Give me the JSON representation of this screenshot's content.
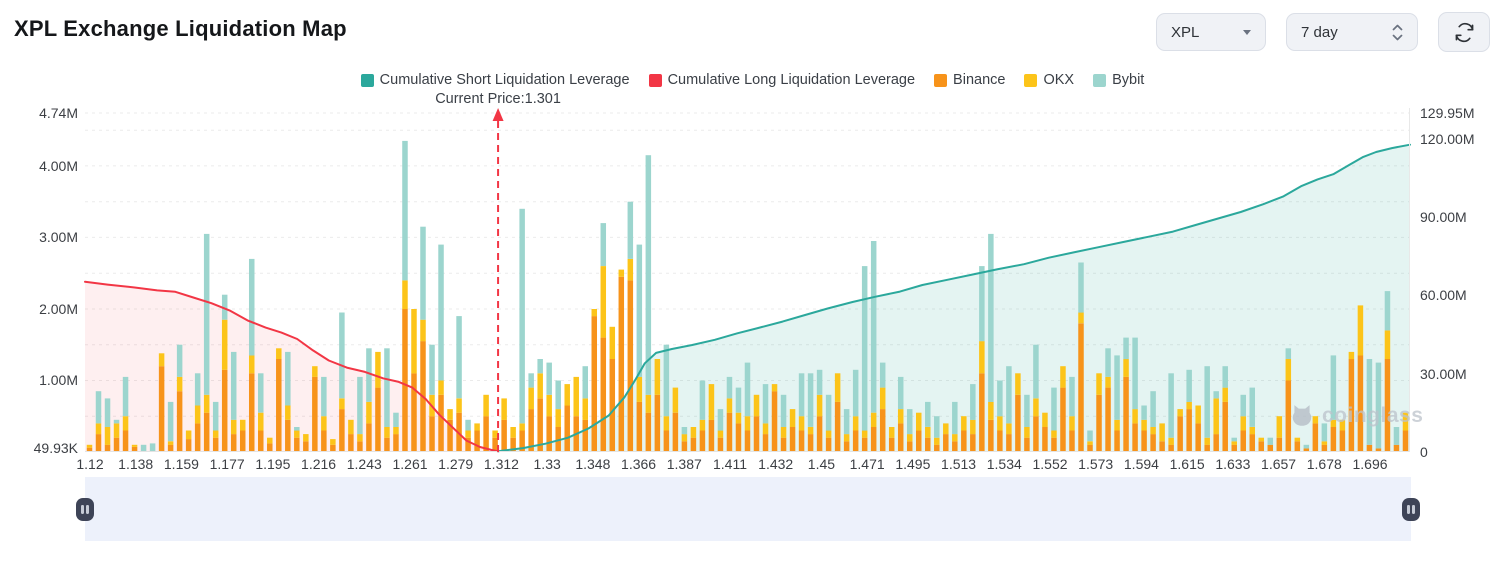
{
  "header": {
    "title": "XPL Exchange Liquidation Map"
  },
  "controls": {
    "symbol_select": {
      "value": "XPL"
    },
    "period_select": {
      "value": "7 day"
    },
    "refresh_button": {
      "icon": "refresh-icon"
    }
  },
  "legend": {
    "items": [
      {
        "id": "short",
        "label": "Cumulative Short Liquidation Leverage",
        "color": "#2BA89C"
      },
      {
        "id": "long",
        "label": "Cumulative Long Liquidation Leverage",
        "color": "#F23645"
      },
      {
        "id": "binance",
        "label": "Binance",
        "color": "#F7931A"
      },
      {
        "id": "okx",
        "label": "OKX",
        "color": "#FCC419"
      },
      {
        "id": "bybit",
        "label": "Bybit",
        "color": "#9CD5CE"
      }
    ]
  },
  "watermark": {
    "text": "coinglass"
  },
  "chart_data": {
    "type": "bar",
    "title": "XPL Exchange Liquidation Map",
    "xlabel": "Price (USDT)",
    "x_price_range": [
      1.118,
      1.705
    ],
    "x_tick_labels": [
      "1.12",
      "1.138",
      "1.159",
      "1.177",
      "1.195",
      "1.216",
      "1.243",
      "1.261",
      "1.279",
      "1.312",
      "1.33",
      "1.348",
      "1.366",
      "1.387",
      "1.411",
      "1.432",
      "1.45",
      "1.471",
      "1.495",
      "1.513",
      "1.534",
      "1.552",
      "1.573",
      "1.594",
      "1.615",
      "1.633",
      "1.657",
      "1.678",
      "1.696"
    ],
    "left_axis": {
      "unit": "M",
      "max": 4.74,
      "ticks": [
        {
          "v": 0.04993,
          "t": "49.93K"
        },
        {
          "v": 1,
          "t": "1.00M"
        },
        {
          "v": 2,
          "t": "2.00M"
        },
        {
          "v": 3,
          "t": "3.00M"
        },
        {
          "v": 4,
          "t": "4.00M"
        },
        {
          "v": 4.74,
          "t": "4.74M"
        }
      ],
      "gridlines": [
        0.5,
        1,
        1.5,
        2,
        2.5,
        3,
        3.5,
        4,
        4.5,
        4.74
      ]
    },
    "right_axis": {
      "unit": "M",
      "max": 129.95,
      "ticks": [
        {
          "v": 0,
          "t": "0"
        },
        {
          "v": 30,
          "t": "30.00M"
        },
        {
          "v": 60,
          "t": "60.00M"
        },
        {
          "v": 90,
          "t": "90.00M"
        },
        {
          "v": 120,
          "t": "120.00M"
        },
        {
          "v": 129.95,
          "t": "129.95M"
        }
      ]
    },
    "current_price": {
      "value": 1.301,
      "label": "Current Price:1.301",
      "line_color": "#F23645"
    },
    "bar_series": {
      "names": [
        "Binance",
        "OKX",
        "Bybit"
      ],
      "colors": [
        "#F7931A",
        "#FCC419",
        "#9CD5CE"
      ],
      "unit": "M (liquidation leverage per price bin, estimated)",
      "stacks": [
        [
          0.06,
          0.04,
          0
        ],
        [
          0.25,
          0.15,
          0.45
        ],
        [
          0.1,
          0.25,
          0.4
        ],
        [
          0.2,
          0.2,
          0.05
        ],
        [
          0.3,
          0.2,
          0.55
        ],
        [
          0.07,
          0.03,
          0
        ],
        [
          0,
          0,
          0.1
        ],
        [
          0,
          0,
          0.12
        ],
        [
          1.2,
          0.18,
          0
        ],
        [
          0.1,
          0.05,
          0.55
        ],
        [
          0.85,
          0.2,
          0.45
        ],
        [
          0.18,
          0.12,
          0
        ],
        [
          0.4,
          0.25,
          0.45
        ],
        [
          0.55,
          0.25,
          2.25
        ],
        [
          0.2,
          0.1,
          0.4
        ],
        [
          1.15,
          0.7,
          0.35
        ],
        [
          0.25,
          0.2,
          0.95
        ],
        [
          0.3,
          0.15,
          0
        ],
        [
          1.1,
          0.25,
          1.35
        ],
        [
          0.3,
          0.25,
          0.55
        ],
        [
          0.12,
          0.08,
          0
        ],
        [
          1.3,
          0.15,
          0
        ],
        [
          0.45,
          0.2,
          0.75
        ],
        [
          0.2,
          0.1,
          0.05
        ],
        [
          0.15,
          0.1,
          0
        ],
        [
          1.05,
          0.15,
          0
        ],
        [
          0.3,
          0.2,
          0.55
        ],
        [
          0.1,
          0.08,
          0
        ],
        [
          0.6,
          0.15,
          1.2
        ],
        [
          0.25,
          0.2,
          0
        ],
        [
          0.15,
          0.1,
          0.8
        ],
        [
          0.4,
          0.3,
          0.75
        ],
        [
          0.9,
          0.5,
          0
        ],
        [
          0.2,
          0.15,
          1.1
        ],
        [
          0.25,
          0.1,
          0.2
        ],
        [
          2.0,
          0.4,
          1.95
        ],
        [
          1.1,
          0.9,
          0
        ],
        [
          1.55,
          0.3,
          1.3
        ],
        [
          0.5,
          0.3,
          0.7
        ],
        [
          0.8,
          0.2,
          1.9
        ],
        [
          0.45,
          0.15,
          0
        ],
        [
          0.55,
          0.2,
          1.15
        ],
        [
          0.2,
          0.1,
          0.15
        ],
        [
          0.3,
          0.1,
          0
        ],
        [
          0.5,
          0.3,
          0
        ],
        [
          0.2,
          0.1,
          0
        ],
        [
          0.45,
          0.3,
          0
        ],
        [
          0.2,
          0.15,
          0
        ],
        [
          0.3,
          0.1,
          3.0
        ],
        [
          0.6,
          0.3,
          0.2
        ],
        [
          0.75,
          0.35,
          0.2
        ],
        [
          0.5,
          0.3,
          0.45
        ],
        [
          0.35,
          0.25,
          0.4
        ],
        [
          0.65,
          0.3,
          0
        ],
        [
          0.5,
          0.55,
          0
        ],
        [
          0.45,
          0.3,
          0.45
        ],
        [
          1.9,
          0.1,
          0
        ],
        [
          1.6,
          1.0,
          0.6
        ],
        [
          1.3,
          0.45,
          0
        ],
        [
          2.45,
          0.1,
          0
        ],
        [
          2.4,
          0.3,
          0.8
        ],
        [
          0.7,
          0.35,
          1.85
        ],
        [
          0.55,
          0.25,
          3.35
        ],
        [
          0.8,
          0.5,
          0
        ],
        [
          0.3,
          0.2,
          1.0
        ],
        [
          0.55,
          0.35,
          0
        ],
        [
          0.15,
          0.1,
          0.1
        ],
        [
          0.2,
          0.15,
          0
        ],
        [
          0.3,
          0.15,
          0.55
        ],
        [
          0.45,
          0.5,
          0
        ],
        [
          0.2,
          0.1,
          0.3
        ],
        [
          0.55,
          0.2,
          0.3
        ],
        [
          0.4,
          0.15,
          0.35
        ],
        [
          0.3,
          0.2,
          0.75
        ],
        [
          0.5,
          0.3,
          0
        ],
        [
          0.25,
          0.15,
          0.55
        ],
        [
          0.85,
          0.1,
          0
        ],
        [
          0.2,
          0.15,
          0.45
        ],
        [
          0.35,
          0.25,
          0
        ],
        [
          0.3,
          0.2,
          0.6
        ],
        [
          0.25,
          0.1,
          0.75
        ],
        [
          0.5,
          0.3,
          0.35
        ],
        [
          0.2,
          0.1,
          0.5
        ],
        [
          0.7,
          0.4,
          0
        ],
        [
          0.15,
          0.1,
          0.35
        ],
        [
          0.3,
          0.2,
          0.65
        ],
        [
          0.2,
          0.1,
          2.3
        ],
        [
          0.35,
          0.2,
          2.4
        ],
        [
          0.6,
          0.3,
          0.35
        ],
        [
          0.2,
          0.15,
          0
        ],
        [
          0.4,
          0.2,
          0.45
        ],
        [
          0.15,
          0.1,
          0.35
        ],
        [
          0.3,
          0.25,
          0
        ],
        [
          0.2,
          0.15,
          0.35
        ],
        [
          0.1,
          0.1,
          0.3
        ],
        [
          0.25,
          0.15,
          0
        ],
        [
          0.15,
          0.1,
          0.45
        ],
        [
          0.3,
          0.2,
          0
        ],
        [
          0.25,
          0.2,
          0.5
        ],
        [
          1.1,
          0.45,
          1.05
        ],
        [
          0.45,
          0.25,
          2.35
        ],
        [
          0.3,
          0.2,
          0.5
        ],
        [
          0.25,
          0.15,
          0.8
        ],
        [
          0.8,
          0.3,
          0
        ],
        [
          0.2,
          0.15,
          0.45
        ],
        [
          0.5,
          0.25,
          0.75
        ],
        [
          0.35,
          0.2,
          0
        ],
        [
          0.2,
          0.1,
          0.6
        ],
        [
          0.9,
          0.3,
          0
        ],
        [
          0.3,
          0.2,
          0.55
        ],
        [
          1.8,
          0.15,
          0.7
        ],
        [
          0.1,
          0.05,
          0.15
        ],
        [
          0.8,
          0.3,
          0
        ],
        [
          0.9,
          0.15,
          0.4
        ],
        [
          0.3,
          0.15,
          0.9
        ],
        [
          1.05,
          0.25,
          0.3
        ],
        [
          0.4,
          0.2,
          1.0
        ],
        [
          0.3,
          0.15,
          0.2
        ],
        [
          0.25,
          0.1,
          0.5
        ],
        [
          0.15,
          0.25,
          0
        ],
        [
          0.1,
          0.1,
          0.9
        ],
        [
          0.5,
          0.1,
          0
        ],
        [
          0.6,
          0.1,
          0.45
        ],
        [
          0.4,
          0.25,
          0
        ],
        [
          0.1,
          0.1,
          1.0
        ],
        [
          0.25,
          0.5,
          0.1
        ],
        [
          0.7,
          0.2,
          0.3
        ],
        [
          0.1,
          0.05,
          0.05
        ],
        [
          0.3,
          0.2,
          0.3
        ],
        [
          0.25,
          0.1,
          0.55
        ],
        [
          0.15,
          0.05,
          0
        ],
        [
          0.1,
          0,
          0.1
        ],
        [
          0.2,
          0.3,
          0
        ],
        [
          1.0,
          0.3,
          0.15
        ],
        [
          0.15,
          0.05,
          0
        ],
        [
          0.05,
          0,
          0.05
        ],
        [
          0.4,
          0.1,
          0
        ],
        [
          0.1,
          0.05,
          0.25
        ],
        [
          0.35,
          0.1,
          0.9
        ],
        [
          0.3,
          0.15,
          0
        ],
        [
          1.3,
          0.1,
          0
        ],
        [
          1.35,
          0.7,
          0
        ],
        [
          0.1,
          0,
          1.2
        ],
        [
          0.05,
          0,
          1.2
        ],
        [
          1.3,
          0.4,
          0.55
        ],
        [
          0.1,
          0,
          0.25
        ],
        [
          0.3,
          0.25,
          0
        ]
      ]
    },
    "lines": [
      {
        "name": "Cumulative Long Liquidation Leverage",
        "axis": "left",
        "color": "#F23645",
        "fill": "rgba(242,54,69,0.08)",
        "points": [
          [
            1.118,
            2.38
          ],
          [
            1.128,
            2.34
          ],
          [
            1.14,
            2.3
          ],
          [
            1.15,
            2.26
          ],
          [
            1.158,
            2.24
          ],
          [
            1.166,
            2.16
          ],
          [
            1.174,
            2.08
          ],
          [
            1.182,
            1.98
          ],
          [
            1.19,
            1.84
          ],
          [
            1.198,
            1.74
          ],
          [
            1.205,
            1.67
          ],
          [
            1.212,
            1.58
          ],
          [
            1.219,
            1.42
          ],
          [
            1.226,
            1.28
          ],
          [
            1.234,
            1.18
          ],
          [
            1.242,
            1.12
          ],
          [
            1.25,
            1.03
          ],
          [
            1.257,
            0.98
          ],
          [
            1.263,
            0.9
          ],
          [
            1.269,
            0.74
          ],
          [
            1.275,
            0.52
          ],
          [
            1.281,
            0.34
          ],
          [
            1.287,
            0.16
          ],
          [
            1.293,
            0.07
          ],
          [
            1.298,
            0.03
          ],
          [
            1.301,
            0.01
          ]
        ]
      },
      {
        "name": "Cumulative Short Liquidation Leverage",
        "axis": "right",
        "color": "#2BA89C",
        "fill": "rgba(43,168,156,0.13)",
        "points": [
          [
            1.301,
            0.3
          ],
          [
            1.312,
            1.5
          ],
          [
            1.322,
            3.2
          ],
          [
            1.332,
            5.5
          ],
          [
            1.341,
            9
          ],
          [
            1.35,
            14
          ],
          [
            1.357,
            21
          ],
          [
            1.362,
            28
          ],
          [
            1.366,
            34
          ],
          [
            1.371,
            38
          ],
          [
            1.378,
            39.5
          ],
          [
            1.387,
            41
          ],
          [
            1.397,
            43
          ],
          [
            1.407,
            45.5
          ],
          [
            1.416,
            47.5
          ],
          [
            1.427,
            50
          ],
          [
            1.437,
            52.5
          ],
          [
            1.447,
            55
          ],
          [
            1.458,
            57.5
          ],
          [
            1.468,
            59.5
          ],
          [
            1.479,
            61.5
          ],
          [
            1.489,
            64
          ],
          [
            1.5,
            66
          ],
          [
            1.511,
            68
          ],
          [
            1.522,
            70
          ],
          [
            1.534,
            72
          ],
          [
            1.545,
            74.5
          ],
          [
            1.556,
            76.5
          ],
          [
            1.567,
            78.5
          ],
          [
            1.578,
            80.5
          ],
          [
            1.589,
            82.5
          ],
          [
            1.6,
            84.5
          ],
          [
            1.61,
            87
          ],
          [
            1.62,
            89.5
          ],
          [
            1.63,
            92
          ],
          [
            1.64,
            95
          ],
          [
            1.649,
            98
          ],
          [
            1.657,
            102
          ],
          [
            1.664,
            104.5
          ],
          [
            1.671,
            106.5
          ],
          [
            1.678,
            110
          ],
          [
            1.684,
            113
          ],
          [
            1.69,
            115
          ],
          [
            1.697,
            116.5
          ],
          [
            1.705,
            117.8
          ]
        ]
      }
    ],
    "legend_position": "top",
    "grid": true
  }
}
